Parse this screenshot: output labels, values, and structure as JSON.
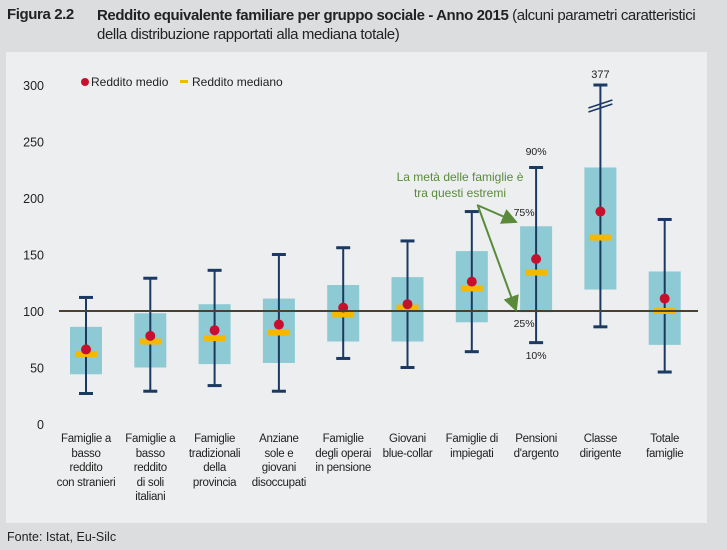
{
  "header": {
    "figure_label": "Figura 2.2",
    "title_bold": "Reddito equivalente familiare per gruppo sociale - Anno 2015",
    "title_rest": " (alcuni parametri caratteristici della distribuzione rapportati alla mediana totale)"
  },
  "source": "Fonte: Istat, Eu-Silc",
  "colors": {
    "box": "#8ecad3",
    "whisker": "#1b3a63",
    "mean": "#c8102e",
    "median": "#f5b800",
    "reference_line": "#4a4230",
    "annotation": "#5a8a3a"
  },
  "chart_data": {
    "type": "box",
    "ylim": [
      0,
      300
    ],
    "yticks": [
      0,
      50,
      100,
      150,
      200,
      250,
      300
    ],
    "reference_line": 100,
    "legend": {
      "position": "top-left",
      "items": [
        {
          "label": "Reddito medio",
          "marker": "dot"
        },
        {
          "label": "Reddito mediano",
          "marker": "dash"
        }
      ]
    },
    "categories": [
      "Famiglie a\nbasso\nreddito\ncon stranieri",
      "Famiglie a\nbasso\nreddito\ndi soli\nitaliani",
      "Famiglie\ntradizionali\ndella\nprovincia",
      "Anziane\nsole e\ngiovani\ndisoccupati",
      "Famiglie\ndegli operai\nin pensione",
      "Giovani\nblue-collar",
      "Famiglie di\nimpiegati",
      "Pensioni\nd'argento",
      "Classe\ndirigente",
      "Totale\nfamiglie"
    ],
    "p10": [
      27,
      29,
      34,
      29,
      58,
      50,
      64,
      72,
      86,
      46
    ],
    "p25": [
      44,
      50,
      53,
      54,
      73,
      73,
      90,
      99,
      119,
      70
    ],
    "median": [
      62,
      73,
      76,
      81,
      97,
      103,
      120,
      134,
      165,
      100
    ],
    "mean": [
      66,
      78,
      83,
      88,
      103,
      106,
      126,
      146,
      188,
      111
    ],
    "p75": [
      86,
      98,
      106,
      111,
      123,
      130,
      153,
      175,
      227,
      135
    ],
    "p90": [
      112,
      129,
      136,
      150,
      156,
      162,
      188,
      227,
      377,
      181
    ],
    "axis_break": {
      "category_index": 8,
      "value_label": "377"
    },
    "annotations": {
      "p90_label": "90%",
      "p75_label": "75%",
      "p25_label": "25%",
      "p10_label": "10%",
      "note": "La metà delle famiglie è\ntra questi estremi"
    }
  }
}
